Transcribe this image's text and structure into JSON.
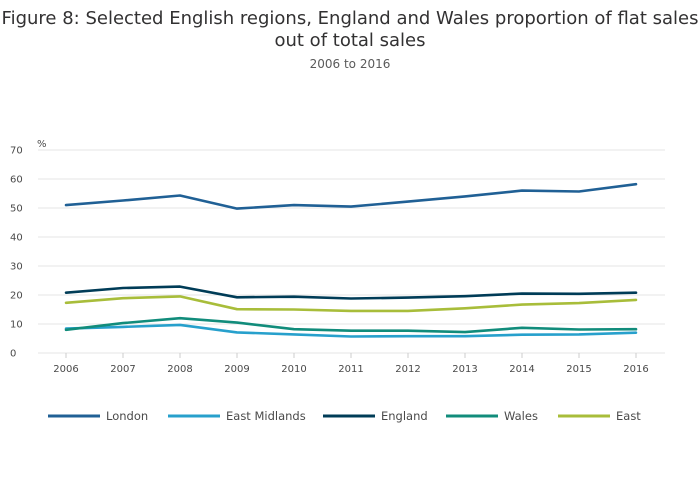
{
  "chart_data": {
    "type": "line",
    "title": "Figure 8: Selected English regions, England and Wales proportion of flat sales out of total sales",
    "subtitle": "2006 to 2016",
    "ylabel": "%",
    "xlabel": "",
    "ylim": [
      0,
      70
    ],
    "yticks": [
      0,
      10,
      20,
      30,
      40,
      50,
      60,
      70
    ],
    "categories": [
      "2006",
      "2007",
      "2008",
      "2009",
      "2010",
      "2011",
      "2012",
      "2013",
      "2014",
      "2015",
      "2016"
    ],
    "grid": true,
    "legend_position": "bottom",
    "series": [
      {
        "name": "London",
        "color": "#206095",
        "values": [
          51.0,
          52.6,
          54.3,
          49.8,
          51.0,
          50.5,
          52.2,
          54.0,
          56.0,
          55.7,
          58.2
        ]
      },
      {
        "name": "East Midlands",
        "color": "#27a0cc",
        "values": [
          8.4,
          9.0,
          9.7,
          7.1,
          6.4,
          5.7,
          5.8,
          5.8,
          6.3,
          6.4,
          7.0
        ]
      },
      {
        "name": "England",
        "color": "#003c57",
        "values": [
          20.8,
          22.4,
          22.9,
          19.2,
          19.4,
          18.8,
          19.1,
          19.6,
          20.5,
          20.4,
          20.8
        ]
      },
      {
        "name": "Wales",
        "color": "#118c7b",
        "values": [
          8.0,
          10.3,
          12.0,
          10.5,
          8.2,
          7.7,
          7.7,
          7.2,
          8.7,
          8.1,
          8.2
        ]
      },
      {
        "name": "East",
        "color": "#a8bd3a",
        "values": [
          17.3,
          18.9,
          19.5,
          15.1,
          15.0,
          14.5,
          14.5,
          15.4,
          16.7,
          17.2,
          18.3
        ]
      }
    ]
  }
}
